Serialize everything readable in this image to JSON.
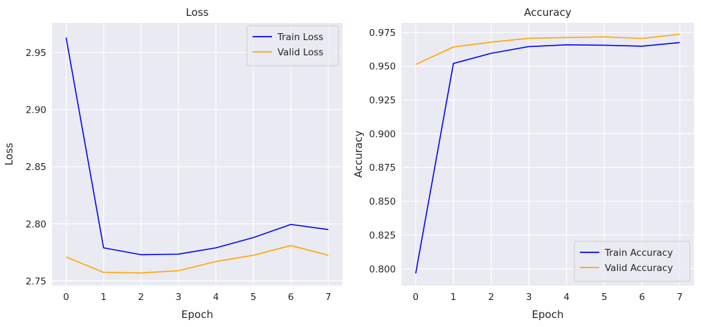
{
  "chart_data": [
    {
      "type": "line",
      "title": "Loss",
      "xlabel": "Epoch",
      "ylabel": "Loss",
      "x": [
        0,
        1,
        2,
        3,
        4,
        5,
        6,
        7
      ],
      "xticks": [
        "0",
        "1",
        "2",
        "3",
        "4",
        "5",
        "6",
        "7"
      ],
      "yticks": [
        "2.75",
        "2.80",
        "2.85",
        "2.90",
        "2.95"
      ],
      "xlim": [
        -0.38,
        7.38
      ],
      "ylim": [
        2.746,
        2.976
      ],
      "grid": true,
      "legend_position": "upper right",
      "series": [
        {
          "name": "Train Loss",
          "color": "#0000ff",
          "values": [
            2.963,
            2.779,
            2.773,
            2.7735,
            2.779,
            2.788,
            2.7995,
            2.795
          ]
        },
        {
          "name": "Valid Loss",
          "color": "#ffa500",
          "values": [
            2.771,
            2.7575,
            2.757,
            2.759,
            2.767,
            2.7725,
            2.781,
            2.7725
          ]
        }
      ]
    },
    {
      "type": "line",
      "title": "Accuracy",
      "xlabel": "Epoch",
      "ylabel": "Accuracy",
      "x": [
        0,
        1,
        2,
        3,
        4,
        5,
        6,
        7
      ],
      "xticks": [
        "0",
        "1",
        "2",
        "3",
        "4",
        "5",
        "6",
        "7"
      ],
      "yticks": [
        "0.800",
        "0.825",
        "0.850",
        "0.875",
        "0.900",
        "0.925",
        "0.950",
        "0.975"
      ],
      "xlim": [
        -0.38,
        7.38
      ],
      "ylim": [
        0.7876,
        0.9821
      ],
      "grid": true,
      "legend_position": "lower right",
      "series": [
        {
          "name": "Train Accuracy",
          "color": "#0000ff",
          "values": [
            0.7965,
            0.952,
            0.9595,
            0.9645,
            0.9658,
            0.9655,
            0.9648,
            0.9675
          ]
        },
        {
          "name": "Valid Accuracy",
          "color": "#ffa500",
          "values": [
            0.9513,
            0.9642,
            0.9678,
            0.9706,
            0.9712,
            0.9717,
            0.9705,
            0.9736
          ]
        }
      ]
    }
  ]
}
